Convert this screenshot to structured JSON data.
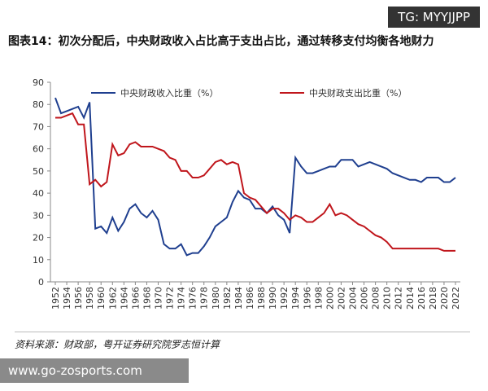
{
  "watermarks": {
    "top": "TG: MYYJJPP",
    "bottom": "www.go-zosports.com"
  },
  "chart_data": {
    "type": "line",
    "title": "图表14：初次分配后，中央财政收入占比高于支出占比，通过转移支付均衡各地财力",
    "source": "资料来源：财政部，粤开证券研究院罗志恒计算",
    "x": [
      1952,
      1953,
      1954,
      1955,
      1956,
      1957,
      1958,
      1959,
      1960,
      1961,
      1962,
      1963,
      1964,
      1965,
      1966,
      1967,
      1968,
      1969,
      1970,
      1971,
      1972,
      1973,
      1974,
      1975,
      1976,
      1977,
      1978,
      1979,
      1980,
      1981,
      1982,
      1983,
      1984,
      1985,
      1986,
      1987,
      1988,
      1989,
      1990,
      1991,
      1992,
      1993,
      1994,
      1995,
      1996,
      1997,
      1998,
      1999,
      2000,
      2001,
      2002,
      2003,
      2004,
      2005,
      2006,
      2007,
      2008,
      2009,
      2010,
      2011,
      2012,
      2013,
      2014,
      2015,
      2016,
      2017,
      2018,
      2019,
      2020,
      2021,
      2022
    ],
    "series": [
      {
        "name": "中央财政收入比重（%）",
        "color": "#1f3f8f",
        "values": [
          83,
          76,
          77,
          78,
          79,
          74,
          81,
          24,
          25,
          22,
          29,
          23,
          27,
          33,
          35,
          31,
          29,
          32,
          28,
          17,
          15,
          15,
          17,
          12,
          13,
          13,
          16,
          20,
          25,
          27,
          29,
          36,
          41,
          38,
          37,
          33,
          33,
          31,
          34,
          30,
          28,
          22,
          56,
          52,
          49,
          49,
          50,
          51,
          52,
          52,
          55,
          55,
          55,
          52,
          53,
          54,
          53,
          52,
          51,
          49,
          48,
          47,
          46,
          46,
          45,
          47,
          47,
          47,
          45,
          45,
          47
        ]
      },
      {
        "name": "中央财政支出比重（%）",
        "color": "#c0161c",
        "values": [
          74,
          74,
          75,
          76,
          71,
          71,
          44,
          46,
          43,
          45,
          62,
          57,
          58,
          62,
          63,
          61,
          61,
          61,
          60,
          59,
          56,
          55,
          50,
          50,
          47,
          47,
          48,
          51,
          54,
          55,
          53,
          54,
          53,
          40,
          38,
          37,
          34,
          31,
          33,
          33,
          31,
          28,
          30,
          29,
          27,
          27,
          29,
          31,
          35,
          30,
          31,
          30,
          28,
          26,
          25,
          23,
          21,
          20,
          18,
          15,
          15,
          15,
          15,
          15,
          15,
          15,
          15,
          15,
          14,
          14,
          14
        ]
      }
    ],
    "xlim": [
      1952,
      2022
    ],
    "xticks": [
      1952,
      1954,
      1956,
      1958,
      1960,
      1962,
      1964,
      1966,
      1968,
      1970,
      1972,
      1974,
      1976,
      1978,
      1980,
      1982,
      1984,
      1986,
      1988,
      1990,
      1992,
      1994,
      1996,
      1998,
      2000,
      2002,
      2004,
      2006,
      2008,
      2010,
      2012,
      2014,
      2016,
      2018,
      2020,
      2022
    ],
    "ylim": [
      0,
      90
    ],
    "yticks": [
      0,
      10,
      20,
      30,
      40,
      50,
      60,
      70,
      80,
      90
    ],
    "legend": "top",
    "grid": false
  }
}
